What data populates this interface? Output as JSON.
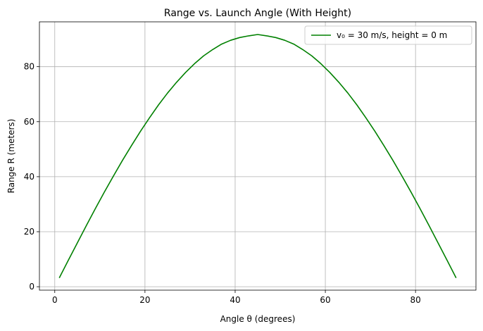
{
  "chart_data": {
    "type": "line",
    "title": "Range vs. Launch Angle (With Height)",
    "xlabel": "Angle θ (degrees)",
    "ylabel": "Range R (meters)",
    "xlim": [
      -3.4,
      93.4
    ],
    "ylim": [
      -1.25,
      96.3
    ],
    "xticks": [
      0,
      20,
      40,
      60,
      80
    ],
    "yticks": [
      0,
      20,
      40,
      60,
      80
    ],
    "grid": true,
    "legend_position": "top-right",
    "series": [
      {
        "name": "v₀ = 30 m/s, height = 0 m",
        "color": "#008000",
        "x": [
          1,
          3,
          5,
          7,
          9,
          11,
          13,
          15,
          17,
          19,
          21,
          23,
          25,
          27,
          29,
          31,
          33,
          35,
          37,
          39,
          41,
          43,
          45,
          47,
          49,
          51,
          53,
          55,
          57,
          59,
          61,
          63,
          65,
          67,
          69,
          71,
          73,
          75,
          77,
          79,
          81,
          83,
          85,
          87,
          89
        ],
        "y": [
          3.2,
          9.6,
          15.9,
          22.2,
          28.4,
          34.4,
          40.2,
          45.9,
          51.3,
          56.5,
          61.4,
          66.1,
          70.4,
          74.3,
          77.9,
          81.1,
          83.9,
          86.2,
          88.2,
          89.6,
          90.6,
          91.2,
          91.7,
          91.2,
          90.6,
          89.6,
          88.2,
          86.2,
          83.9,
          81.1,
          77.9,
          74.3,
          70.4,
          66.1,
          61.4,
          56.5,
          51.3,
          45.9,
          40.2,
          34.4,
          28.4,
          22.2,
          15.9,
          9.6,
          3.2
        ]
      }
    ]
  }
}
